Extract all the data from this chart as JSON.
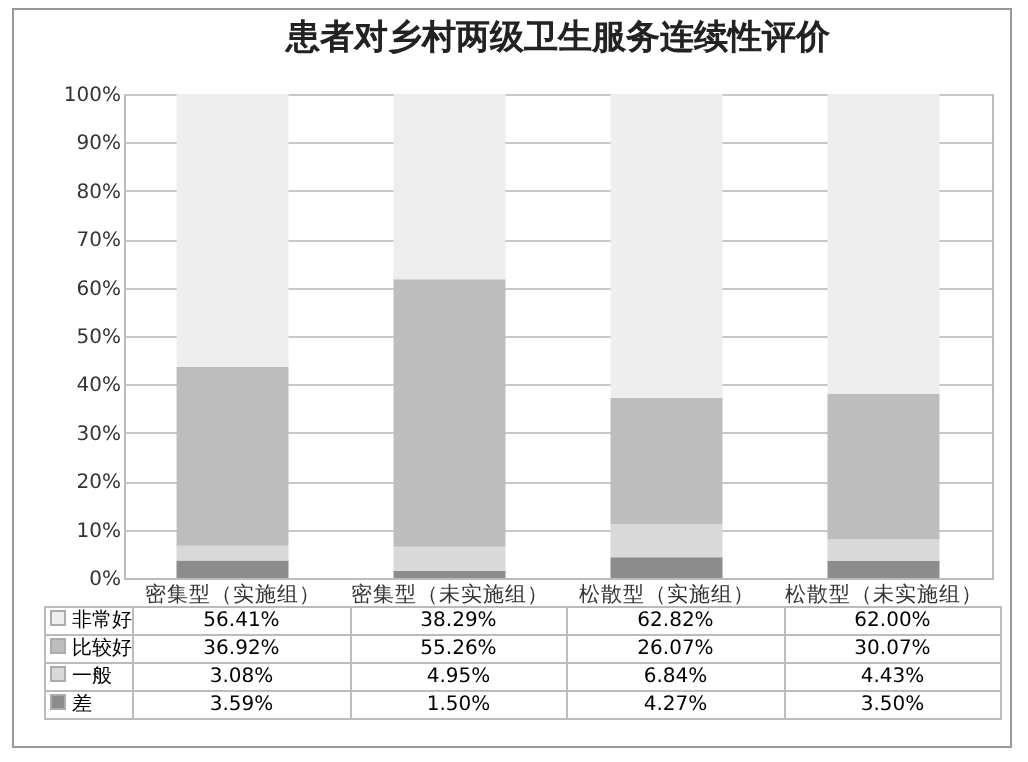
{
  "chart_data": {
    "type": "bar",
    "title": "患者对乡村两级卫生服务连续性评价",
    "categories": [
      "密集型（实施组）",
      "密集型（未实施组）",
      "松散型（实施组）",
      "松散型（未实施组）"
    ],
    "stacked": true,
    "ylim": [
      0,
      100
    ],
    "yticks": [
      {
        "value": 0,
        "label": "0%"
      },
      {
        "value": 10,
        "label": "10%"
      },
      {
        "value": 20,
        "label": "20%"
      },
      {
        "value": 30,
        "label": "30%"
      },
      {
        "value": 40,
        "label": "40%"
      },
      {
        "value": 50,
        "label": "50%"
      },
      {
        "value": 60,
        "label": "60%"
      },
      {
        "value": 70,
        "label": "70%"
      },
      {
        "value": 80,
        "label": "80%"
      },
      {
        "value": 90,
        "label": "90%"
      },
      {
        "value": 100,
        "label": "100%"
      }
    ],
    "grid": "y",
    "legend": "bottom",
    "series": [
      {
        "name": "差",
        "color": "#8c8c8c",
        "values": [
          3.59,
          1.5,
          4.27,
          3.5
        ],
        "value_labels": [
          "3.59%",
          "1.50%",
          "4.27%",
          "3.50%"
        ]
      },
      {
        "name": "一般",
        "color": "#d9d9d9",
        "values": [
          3.08,
          4.95,
          6.84,
          4.43
        ],
        "value_labels": [
          "3.08%",
          "4.95%",
          "6.84%",
          "4.43%"
        ]
      },
      {
        "name": "比较好",
        "color": "#bdbdbd",
        "values": [
          36.92,
          55.26,
          26.07,
          30.07
        ],
        "value_labels": [
          "36.92%",
          "55.26%",
          "26.07%",
          "30.07%"
        ]
      },
      {
        "name": "非常好",
        "color": "#eeeeee",
        "values": [
          56.41,
          38.29,
          62.82,
          62.0
        ],
        "value_labels": [
          "56.41%",
          "38.29%",
          "62.82%",
          "62.00%"
        ]
      }
    ]
  }
}
